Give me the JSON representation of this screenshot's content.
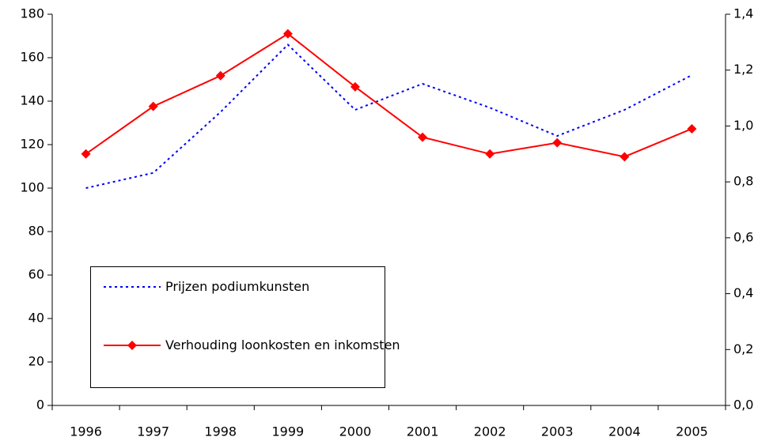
{
  "chart_data": {
    "type": "line",
    "categories": [
      "1996",
      "1997",
      "1998",
      "1999",
      "2000",
      "2001",
      "2002",
      "2003",
      "2004",
      "2005"
    ],
    "series": [
      {
        "name": "Prijzen podiumkunsten",
        "color": "#0000ff",
        "dash": true,
        "values": [
          100,
          107,
          135,
          166,
          136,
          148,
          137,
          124,
          136,
          152
        ]
      },
      {
        "name": "Verhouding loonkosten en inkomsten",
        "color": "#ff0000",
        "axis": "y2",
        "marker": "diamond",
        "values": [
          0.9,
          1.07,
          1.18,
          1.33,
          1.14,
          0.96,
          0.9,
          0.94,
          0.89,
          0.99
        ]
      }
    ],
    "ylim": [
      0,
      180
    ],
    "yticks": [
      0,
      20,
      40,
      60,
      80,
      100,
      120,
      140,
      160,
      180
    ],
    "y2lim": [
      0,
      1.4
    ],
    "y2ticks": [
      {
        "value": 0,
        "label": "0,0"
      },
      {
        "value": 0.2,
        "label": "0,2"
      },
      {
        "value": 0.4,
        "label": "0,4"
      },
      {
        "value": 0.6,
        "label": "0,6"
      },
      {
        "value": 0.8,
        "label": "0,8"
      },
      {
        "value": 1.0,
        "label": "1,0"
      },
      {
        "value": 1.2,
        "label": "1,2"
      },
      {
        "value": 1.4,
        "label": "1,4"
      }
    ],
    "grid": false,
    "legend": "lower left"
  }
}
